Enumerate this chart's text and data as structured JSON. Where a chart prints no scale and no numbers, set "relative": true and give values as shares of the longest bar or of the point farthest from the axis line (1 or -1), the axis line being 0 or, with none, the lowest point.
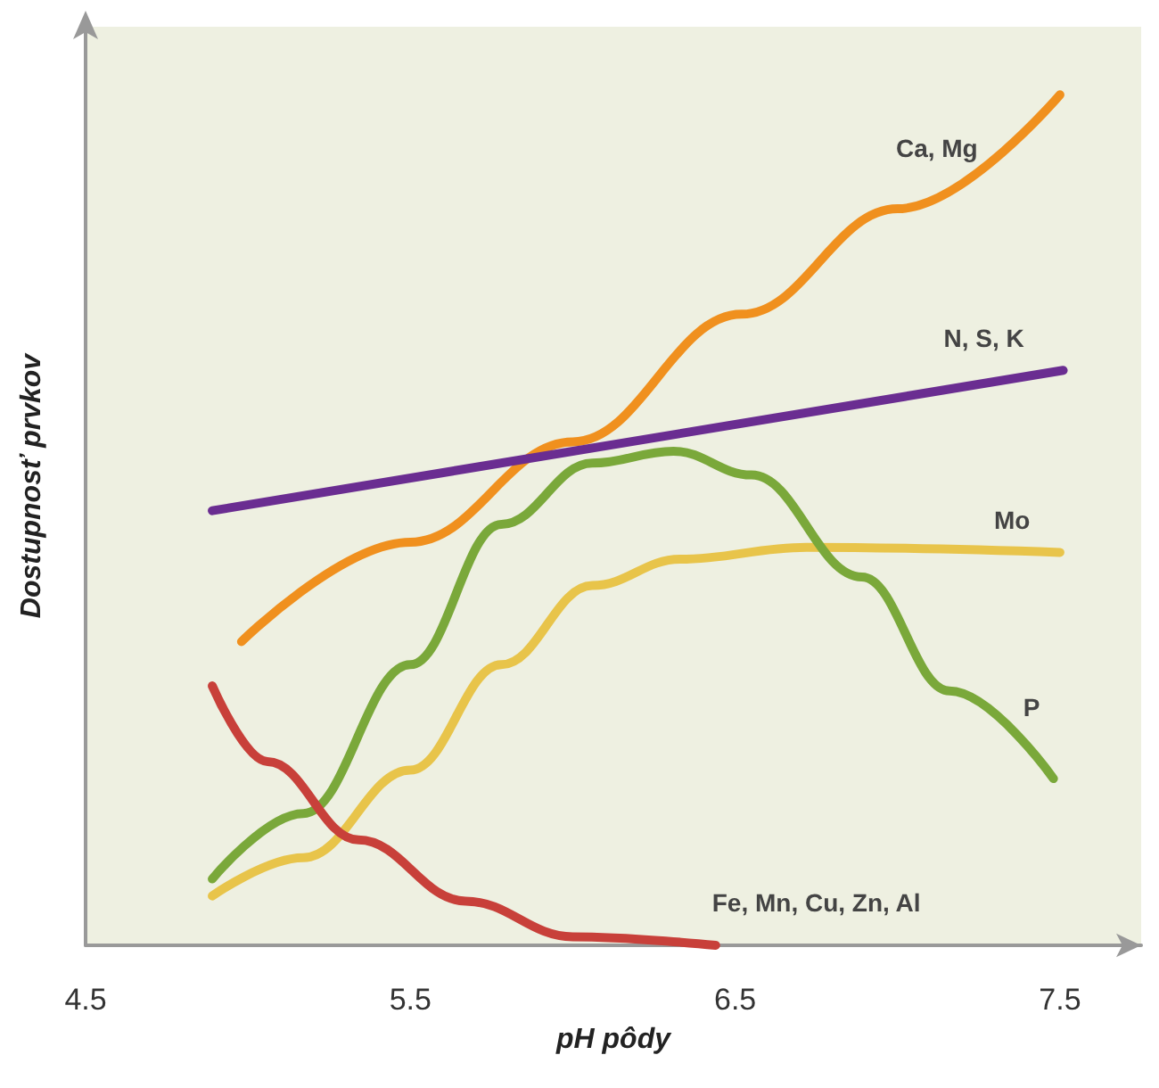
{
  "chart_data": {
    "type": "line",
    "relative": true,
    "xlabel": "pH pôdy",
    "ylabel": "Dostupnosť prvkov",
    "xlim": [
      4.5,
      7.75
    ],
    "xticks": [
      4.5,
      5.5,
      6.5,
      7.5
    ],
    "grid": false,
    "legend": false,
    "marker": "none",
    "line_style": "solid",
    "series": [
      {
        "name": "Ca, Mg",
        "color": "#f0901e",
        "x": [
          4.98,
          5.5,
          6.0,
          6.52,
          7.0,
          7.5
        ],
        "values": [
          0.357,
          0.474,
          0.592,
          0.742,
          0.866,
          1
        ]
      },
      {
        "name": "N, S, K",
        "color": "#6a2d91",
        "x": [
          4.89,
          7.51
        ],
        "values": [
          0.511,
          0.676
        ]
      },
      {
        "name": "Mo",
        "color": "#e8c44a",
        "x": [
          4.89,
          5.17,
          5.5,
          5.78,
          6.06,
          6.33,
          6.72,
          7.5
        ],
        "values": [
          0.058,
          0.103,
          0.206,
          0.33,
          0.423,
          0.454,
          0.468,
          0.462
        ]
      },
      {
        "name": "P",
        "color": "#7aa83a",
        "x": [
          4.89,
          5.17,
          5.5,
          5.78,
          6.06,
          6.31,
          6.55,
          6.89,
          7.16,
          7.48
        ],
        "values": [
          0.078,
          0.155,
          0.33,
          0.495,
          0.567,
          0.581,
          0.553,
          0.433,
          0.299,
          0.196
        ]
      },
      {
        "name": "Fe, Mn, Cu, Zn, Al",
        "color": "#c8403a",
        "x": [
          4.89,
          5.06,
          5.34,
          5.67,
          6.0,
          6.44
        ],
        "values": [
          0.305,
          0.216,
          0.124,
          0.052,
          0.01,
          0
        ]
      }
    ]
  }
}
